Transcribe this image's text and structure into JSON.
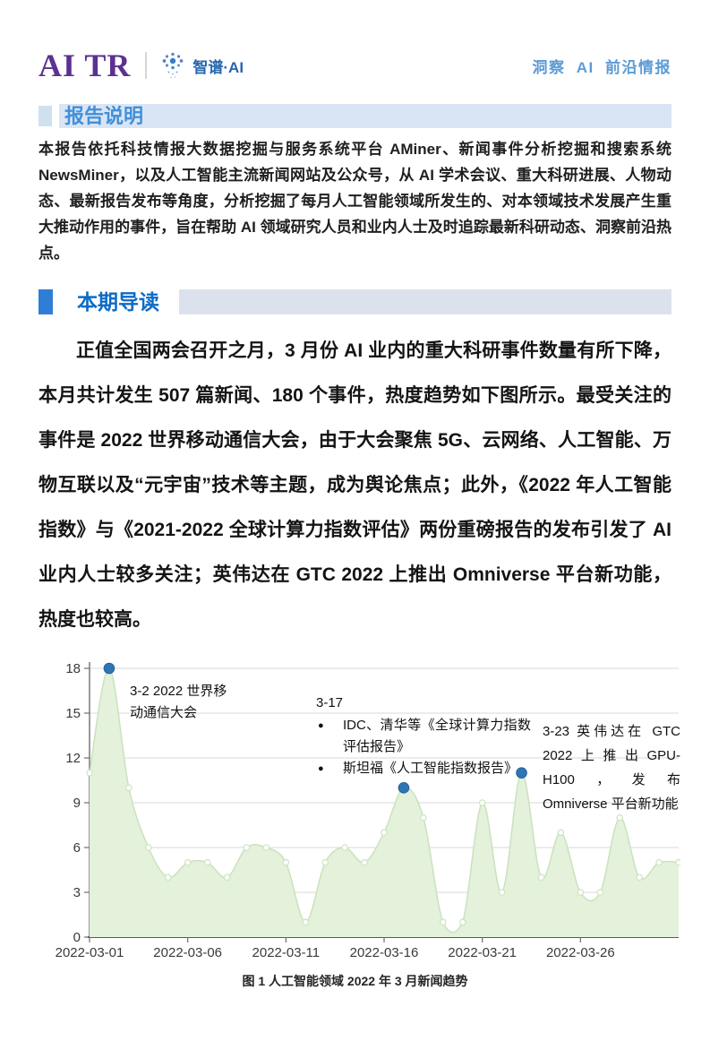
{
  "header": {
    "logo_primary": "AI TR",
    "logo_secondary": "智谱·AI",
    "tagline": "洞察 AI 前沿情报"
  },
  "report_note": {
    "title": "报告说明",
    "body": "本报告依托科技情报大数据挖掘与服务系统平台 AMiner、新闻事件分析挖掘和搜索系统 NewsMiner，以及人工智能主流新闻网站及公众号，从 AI 学术会议、重大科研进展、人物动态、最新报告发布等角度，分析挖掘了每月人工智能领域所发生的、对本领域技术发展产生重大推动作用的事件，旨在帮助 AI 领域研究人员和业内人士及时追踪最新科研动态、洞察前沿热点。"
  },
  "digest": {
    "title": "本期导读",
    "paragraph": "正值全国两会召开之月，3 月份 AI 业内的重大科研事件数量有所下降，本月共计发生 507 篇新闻、180 个事件，热度趋势如下图所示。最受关注的事件是 2022 世界移动通信大会，由于大会聚焦 5G、云网络、人工智能、万物互联以及“元宇宙”技术等主题，成为舆论焦点；此外，《2022 年人工智能指数》与《2021-2022 全球计算力指数评估》两份重磅报告的发布引发了 AI 业内人士较多关注；英伟达在 GTC 2022 上推出 Omniverse 平台新功能，热度也较高。",
    "stats": {
      "news_count": "507",
      "event_count": "180",
      "month": "2022-03"
    }
  },
  "chart_data": {
    "type": "area",
    "title": "",
    "xlabel": "",
    "ylabel": "",
    "x": [
      "2022-03-01",
      "2022-03-02",
      "2022-03-03",
      "2022-03-04",
      "2022-03-05",
      "2022-03-06",
      "2022-03-07",
      "2022-03-08",
      "2022-03-09",
      "2022-03-10",
      "2022-03-11",
      "2022-03-12",
      "2022-03-13",
      "2022-03-14",
      "2022-03-15",
      "2022-03-16",
      "2022-03-17",
      "2022-03-18",
      "2022-03-19",
      "2022-03-20",
      "2022-03-21",
      "2022-03-22",
      "2022-03-23",
      "2022-03-24",
      "2022-03-25",
      "2022-03-26",
      "2022-03-27",
      "2022-03-28",
      "2022-03-29",
      "2022-03-30",
      "2022-03-31"
    ],
    "values": [
      11,
      18,
      10,
      6,
      4,
      5,
      5,
      4,
      6,
      6,
      5,
      1,
      5,
      6,
      5,
      7,
      10,
      8,
      1,
      1,
      9,
      3,
      11,
      4,
      7,
      3,
      3,
      8,
      4,
      5,
      5
    ],
    "xticks": [
      "2022-03-01",
      "2022-03-06",
      "2022-03-11",
      "2022-03-16",
      "2022-03-21",
      "2022-03-26"
    ],
    "yticks": [
      0,
      3,
      6,
      9,
      12,
      15,
      18
    ],
    "ylim": [
      0,
      18
    ],
    "grid": true,
    "legend": false,
    "colors": {
      "area_fill": "#e4f1db",
      "line": "#c9e3bc",
      "marker_fill": "#fdfefc",
      "marker_stroke": "#cde5c2",
      "highlight_dot": "#2e75b6",
      "gridline": "#d9d9d9",
      "axis": "#6e6e6e",
      "tick_label": "#3a3a3a"
    },
    "highlights": [
      {
        "x": "2022-03-02",
        "value": 18
      },
      {
        "x": "2022-03-17",
        "value": 10
      },
      {
        "x": "2022-03-23",
        "value": 11
      }
    ],
    "annotations": [
      {
        "line1": "3-2 2022 世界移",
        "line2": "动通信大会"
      },
      {
        "heading": "3-17",
        "bullets": [
          "IDC、清华等《全球计算力指数评估报告》",
          "斯坦福《人工智能指数报告》"
        ]
      },
      {
        "text": "3-23 英伟达在 GTC 2022上推出GPU-H100，发布 Omniverse 平台新功能"
      }
    ]
  },
  "figure_caption": "图 1 人工智能领域 2022 年 3 月新闻趋势"
}
